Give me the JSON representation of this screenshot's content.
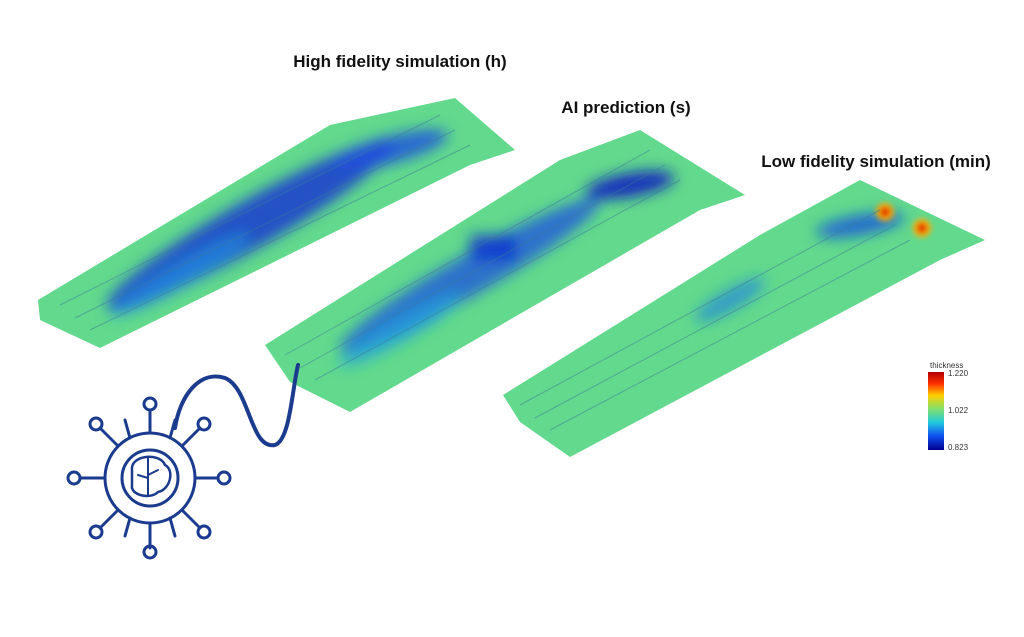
{
  "labels": [
    "High fidelity simulation (h)",
    "AI prediction (s)",
    "Low fidelity simulation (min)"
  ],
  "colorbar": {
    "title": "thickness",
    "labels": [
      "1.220",
      "1.022",
      "0.823"
    ]
  }
}
